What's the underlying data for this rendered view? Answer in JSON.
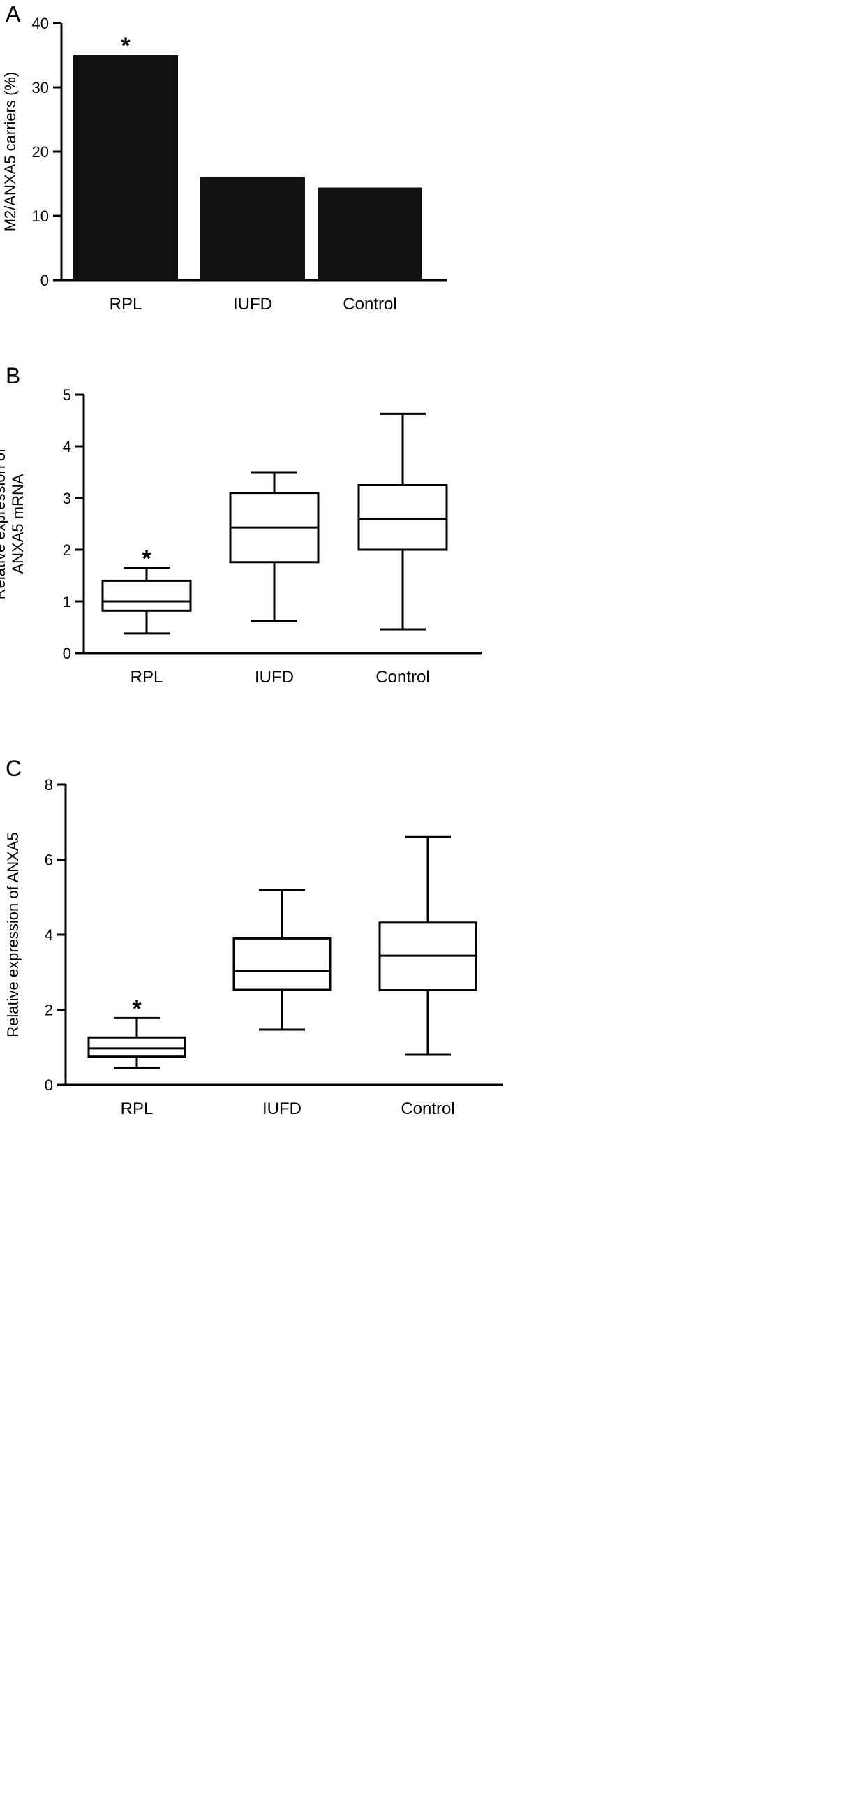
{
  "chart_data": [
    {
      "panel": "A",
      "type": "bar",
      "categories": [
        "RPL",
        "IUFD",
        "Control"
      ],
      "values": [
        35,
        16,
        14.4
      ],
      "annotations": [
        "*",
        "",
        ""
      ],
      "ylabel": "M2/ANXA5 carriers (%)",
      "xlabel": "",
      "ylim": [
        0,
        40
      ],
      "yticks": [
        0,
        10,
        20,
        30,
        40
      ],
      "bar_color": "#111111",
      "grid": false
    },
    {
      "panel": "B",
      "type": "box",
      "categories": [
        "RPL",
        "IUFD",
        "Control"
      ],
      "boxes": [
        {
          "min": 0.38,
          "q1": 0.82,
          "median": 1.0,
          "q3": 1.4,
          "max": 1.65
        },
        {
          "min": 0.62,
          "q1": 1.76,
          "median": 2.43,
          "q3": 3.1,
          "max": 3.5
        },
        {
          "min": 0.46,
          "q1": 2.0,
          "median": 2.6,
          "q3": 3.25,
          "max": 4.63
        }
      ],
      "annotations": [
        "*",
        "",
        ""
      ],
      "ylabel": "Relative expression of ANXA5 mRNA",
      "ylabel_lines": [
        "Relative expression of",
        "ANXA5 mRNA"
      ],
      "xlabel": "",
      "ylim": [
        0,
        5
      ],
      "yticks": [
        0,
        1,
        2,
        3,
        4,
        5
      ],
      "grid": false
    },
    {
      "panel": "C",
      "type": "box",
      "categories": [
        "RPL",
        "IUFD",
        "Control"
      ],
      "boxes": [
        {
          "min": 0.45,
          "q1": 0.75,
          "median": 0.97,
          "q3": 1.26,
          "max": 1.78
        },
        {
          "min": 1.47,
          "q1": 2.53,
          "median": 3.03,
          "q3": 3.9,
          "max": 5.2
        },
        {
          "min": 0.8,
          "q1": 2.52,
          "median": 3.44,
          "q3": 4.32,
          "max": 6.6
        }
      ],
      "annotations": [
        "*",
        "",
        ""
      ],
      "ylabel": "Relative expression of ANXA5",
      "xlabel": "",
      "ylim": [
        0,
        8
      ],
      "yticks": [
        0,
        2,
        4,
        6,
        8
      ],
      "grid": false
    }
  ]
}
